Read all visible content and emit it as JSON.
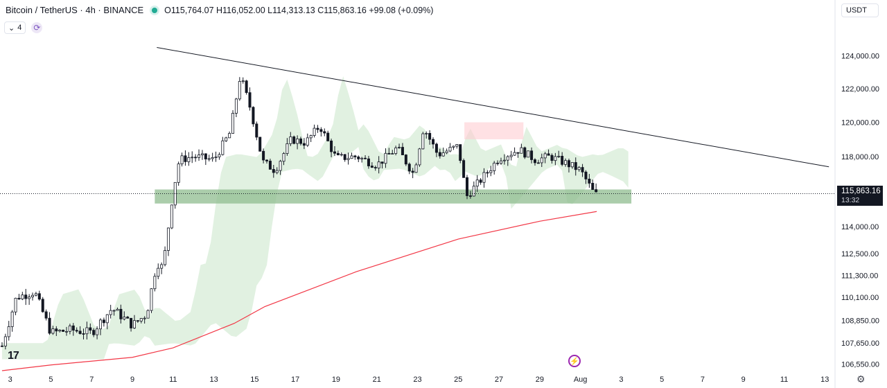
{
  "header": {
    "title": "Bitcoin / TetherUS · 4h · BINANCE",
    "ohlc": "O115,764.07 H116,052.00 L114,313.13 C115,863.16 +99.08 (+0.09%)",
    "indicator_count": "4",
    "currency": "USDT",
    "status_color": "#22ab94"
  },
  "price_tag": {
    "price": "115,863.16",
    "countdown": "13:32"
  },
  "event_icon": "lightning-icon",
  "settings_icon": "gear-icon",
  "colors": {
    "up": "#131722",
    "down": "#131722",
    "ma": "#f23645",
    "cloud_bull": "#c8e6c9",
    "cloud_bear": "#ffcdd2",
    "zone": "#8fbc8f"
  },
  "chart_data": {
    "type": "candlestick",
    "symbol": "BTCUSDT",
    "timeframe": "4h",
    "x_tick_labels": [
      "3",
      "5",
      "7",
      "9",
      "11",
      "13",
      "15",
      "17",
      "19",
      "21",
      "23",
      "25",
      "27",
      "29",
      "Aug",
      "3",
      "5",
      "7",
      "9",
      "11",
      "13"
    ],
    "y_tick_labels": [
      "124,000.00",
      "122,000.00",
      "120,000.00",
      "118,000.00",
      "114,000.00",
      "112,500.00",
      "111,300.00",
      "110,100.00",
      "108,850.00",
      "107,650.00",
      "106,550.00"
    ],
    "y_tick_values": [
      124000,
      122000,
      120000,
      118000,
      114000,
      112500,
      111300,
      110100,
      108850,
      107650,
      106550
    ],
    "x_tick_days": [
      3,
      5,
      7,
      9,
      11,
      13,
      15,
      17,
      19,
      21,
      23,
      25,
      27,
      29,
      31,
      33,
      35,
      37,
      39,
      41,
      43
    ],
    "scale": "log",
    "ylim": [
      106200,
      125500
    ],
    "xlim_days": [
      2.5,
      43.5
    ],
    "current_price": 115863.16,
    "key_points": [
      {
        "day": 2.6,
        "close": 107500
      },
      {
        "day": 3.3,
        "close": 110100
      },
      {
        "day": 4.2,
        "close": 110400
      },
      {
        "day": 5,
        "close": 108200
      },
      {
        "day": 6,
        "close": 108350
      },
      {
        "day": 7,
        "close": 108200
      },
      {
        "day": 8,
        "close": 109500
      },
      {
        "day": 9,
        "close": 108600
      },
      {
        "day": 9.7,
        "close": 109200
      },
      {
        "day": 10.2,
        "close": 112000
      },
      {
        "day": 10.5,
        "close": 111700
      },
      {
        "day": 11,
        "close": 116000
      },
      {
        "day": 11.3,
        "close": 117800
      },
      {
        "day": 12,
        "close": 118000
      },
      {
        "day": 13,
        "close": 117800
      },
      {
        "day": 13.8,
        "close": 119400
      },
      {
        "day": 14.3,
        "close": 122800
      },
      {
        "day": 14.8,
        "close": 120800
      },
      {
        "day": 15.4,
        "close": 117700
      },
      {
        "day": 16,
        "close": 117200
      },
      {
        "day": 16.8,
        "close": 119000
      },
      {
        "day": 17.5,
        "close": 118800
      },
      {
        "day": 18.2,
        "close": 119800
      },
      {
        "day": 19,
        "close": 117900
      },
      {
        "day": 20,
        "close": 118000
      },
      {
        "day": 21,
        "close": 117500
      },
      {
        "day": 22,
        "close": 118500
      },
      {
        "day": 22.8,
        "close": 117000
      },
      {
        "day": 23.3,
        "close": 119700
      },
      {
        "day": 24,
        "close": 118100
      },
      {
        "day": 25,
        "close": 118600
      },
      {
        "day": 25.4,
        "close": 115700
      },
      {
        "day": 26,
        "close": 116500
      },
      {
        "day": 27,
        "close": 117900
      },
      {
        "day": 28,
        "close": 118400
      },
      {
        "day": 28.8,
        "close": 117800
      },
      {
        "day": 29.5,
        "close": 118000
      },
      {
        "day": 30.3,
        "close": 117600
      },
      {
        "day": 31,
        "close": 117200
      },
      {
        "day": 31.7,
        "close": 115800
      },
      {
        "day": 31.9,
        "close": 115863
      }
    ],
    "trendline": [
      {
        "day": 10.2,
        "price": 124500
      },
      {
        "day": 43.2,
        "price": 117400
      }
    ],
    "support_zone": [
      115300,
      116100
    ],
    "ma_line": [
      {
        "day": 2.6,
        "price": 106200
      },
      {
        "day": 5,
        "price": 106500
      },
      {
        "day": 9,
        "price": 106900
      },
      {
        "day": 11,
        "price": 107400
      },
      {
        "day": 14,
        "price": 108700
      },
      {
        "day": 15.5,
        "price": 109600
      },
      {
        "day": 20,
        "price": 111500
      },
      {
        "day": 25,
        "price": 113300
      },
      {
        "day": 29,
        "price": 114300
      },
      {
        "day": 31.8,
        "price": 114850
      }
    ]
  }
}
